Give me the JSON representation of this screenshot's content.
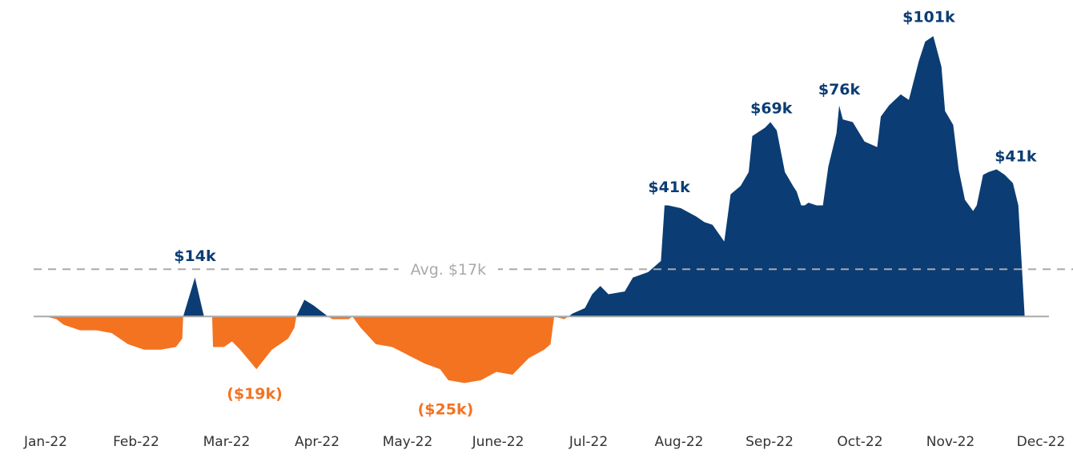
{
  "chart_data": {
    "type": "area",
    "x": [
      0,
      0.12,
      0.2,
      0.38,
      0.56,
      0.73,
      0.91,
      1.09,
      1.27,
      1.44,
      1.51,
      1.52,
      1.65,
      1.75,
      1.84,
      1.85,
      1.97,
      2.06,
      2.15,
      2.33,
      2.5,
      2.68,
      2.75,
      2.77,
      2.86,
      2.96,
      3.08,
      3.12,
      3.17,
      3.35,
      3.39,
      3.48,
      3.65,
      3.83,
      4.01,
      4.19,
      4.36,
      4.45,
      4.63,
      4.81,
      4.98,
      5.16,
      5.34,
      5.51,
      5.58,
      5.62,
      5.73,
      5.78,
      5.82,
      5.96,
      6.04,
      6.13,
      6.22,
      6.4,
      6.49,
      6.66,
      6.8,
      6.84,
      6.88,
      7.02,
      7.19,
      7.28,
      7.37,
      7.5,
      7.57,
      7.68,
      7.77,
      7.81,
      7.95,
      8.01,
      8.08,
      8.17,
      8.26,
      8.3,
      8.35,
      8.39,
      8.43,
      8.52,
      8.59,
      8.65,
      8.74,
      8.77,
      8.81,
      8.92,
      9.05,
      9.19,
      9.23,
      9.32,
      9.45,
      9.54,
      9.65,
      9.72,
      9.81,
      9.9,
      9.94,
      10.03,
      10.09,
      10.16,
      10.25,
      10.29,
      10.36,
      10.42,
      10.51,
      10.6,
      10.69,
      10.75,
      10.82
    ],
    "values": [
      0,
      -1,
      -3,
      -5,
      -5,
      -6,
      -10,
      -12,
      -12,
      -11,
      -8,
      0,
      14,
      0,
      0,
      -11,
      -11,
      -9,
      -12,
      -19,
      -12,
      -8,
      -4,
      0,
      6,
      4,
      1,
      0,
      -1,
      -1,
      0,
      -4,
      -10,
      -11,
      -14,
      -17,
      -19,
      -23,
      -24,
      -23,
      -20,
      -21,
      -15,
      -12,
      -10,
      0,
      -1,
      0,
      1,
      3,
      8,
      11,
      8,
      9,
      14,
      16,
      20,
      40,
      40,
      39,
      36,
      34,
      33,
      27,
      44,
      47,
      52,
      65,
      68,
      70,
      67,
      52,
      47,
      45,
      40,
      40,
      41,
      40,
      40,
      54,
      66,
      76,
      71,
      70,
      63,
      61,
      72,
      76,
      80,
      78,
      92,
      99,
      101,
      90,
      74,
      69,
      53,
      42,
      38,
      40,
      51,
      52,
      53,
      51,
      48,
      40,
      0
    ],
    "colors": {
      "positive": "#0b3d74",
      "negative": "#f37321"
    },
    "xlim": [
      0,
      11
    ],
    "ylim": [
      -36,
      114
    ],
    "xticks": [
      {
        "value": 0,
        "label": "Jan-22"
      },
      {
        "value": 1,
        "label": "Feb-22"
      },
      {
        "value": 2,
        "label": "Mar-22"
      },
      {
        "value": 3,
        "label": "Apr-22"
      },
      {
        "value": 4,
        "label": "May-22"
      },
      {
        "value": 5,
        "label": "June-22"
      },
      {
        "value": 6,
        "label": "Jul-22"
      },
      {
        "value": 7,
        "label": "Aug-22"
      },
      {
        "value": 8,
        "label": "Sep-22"
      },
      {
        "value": 9,
        "label": "Oct-22"
      },
      {
        "value": 10,
        "label": "Nov-22"
      },
      {
        "value": 11,
        "label": "Dec-22"
      }
    ],
    "average": {
      "value": 17,
      "label": "Avg. $17k",
      "x": 4.45
    },
    "annotations": [
      {
        "text": "$14k",
        "x": 1.65,
        "y": 21.6,
        "color": "#0b3d74"
      },
      {
        "text": "($19k)",
        "x": 2.31,
        "y": -28,
        "color": "#f37321"
      },
      {
        "text": "($25k)",
        "x": 4.42,
        "y": -33.7,
        "color": "#f37321"
      },
      {
        "text": "$41k",
        "x": 6.89,
        "y": 46.4,
        "color": "#0b3d74"
      },
      {
        "text": "$69k",
        "x": 8.02,
        "y": 74.7,
        "color": "#0b3d74"
      },
      {
        "text": "$76k",
        "x": 8.77,
        "y": 81.6,
        "color": "#0b3d74"
      },
      {
        "text": "$101k",
        "x": 9.76,
        "y": 107.6,
        "color": "#0b3d74"
      },
      {
        "text": "$41k",
        "x": 10.72,
        "y": 57.4,
        "color": "#0b3d74"
      }
    ]
  }
}
